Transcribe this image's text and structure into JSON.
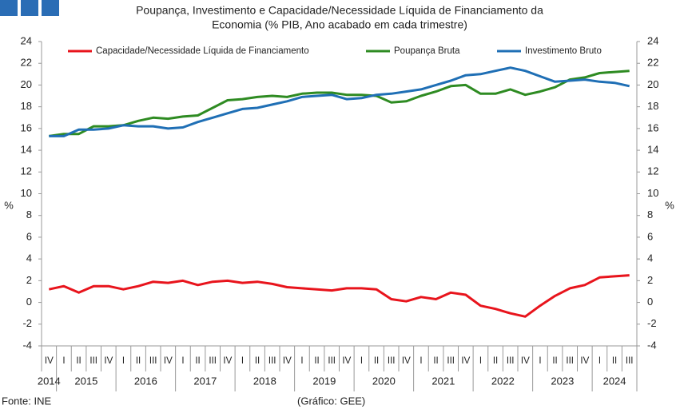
{
  "chart_data": {
    "type": "line",
    "title": [
      "Poupança, Investimento e Capacidade/Necessidade Líquida de Financiamento da",
      "Economia (% PIB, Ano acabado em cada trimestre)"
    ],
    "categories": [
      "IV",
      "I",
      "II",
      "III",
      "IV",
      "I",
      "II",
      "III",
      "IV",
      "I",
      "II",
      "III",
      "IV",
      "I",
      "II",
      "III",
      "IV",
      "I",
      "II",
      "III",
      "IV",
      "I",
      "II",
      "III",
      "IV",
      "I",
      "II",
      "III",
      "IV",
      "I",
      "II",
      "III",
      "IV",
      "I",
      "II",
      "III",
      "IV",
      "I",
      "II",
      "III"
    ],
    "years": [
      "2014",
      "2015",
      "2016",
      "2017",
      "2018",
      "2019",
      "2020",
      "2021",
      "2022",
      "2023",
      "2024"
    ],
    "ylabel": "%",
    "y2label": "%",
    "ylim": [
      -4,
      24
    ],
    "yticks": [
      -4,
      -2,
      0,
      2,
      4,
      6,
      8,
      10,
      12,
      14,
      16,
      18,
      20,
      22,
      24
    ],
    "y2lim": [
      -4,
      24
    ],
    "y2ticks": [
      -4,
      -2,
      0,
      2,
      4,
      6,
      8,
      10,
      12,
      14,
      16,
      18,
      20,
      22,
      24
    ],
    "legend": "top",
    "series": [
      {
        "name": "Capacidade/Necessidade Líquida de Financiamento",
        "color": "#e8141c",
        "values": [
          1.2,
          1.5,
          0.9,
          1.5,
          1.5,
          1.2,
          1.5,
          1.9,
          1.8,
          2.0,
          1.6,
          1.9,
          2.0,
          1.8,
          1.9,
          1.7,
          1.4,
          1.3,
          1.2,
          1.1,
          1.3,
          1.3,
          1.2,
          0.3,
          0.1,
          0.5,
          0.3,
          0.9,
          0.7,
          -0.3,
          -0.6,
          -1.0,
          -1.3,
          -0.3,
          0.6,
          1.3,
          1.6,
          2.3,
          2.4,
          2.5
        ]
      },
      {
        "name": "Poupança Bruta",
        "color": "#2e8b22",
        "values": [
          15.3,
          15.5,
          15.5,
          16.2,
          16.2,
          16.3,
          16.7,
          17.0,
          16.9,
          17.1,
          17.2,
          17.9,
          18.6,
          18.7,
          18.9,
          19.0,
          18.9,
          19.2,
          19.3,
          19.3,
          19.1,
          19.1,
          19.0,
          18.4,
          18.5,
          19.0,
          19.4,
          19.9,
          20.0,
          19.2,
          19.2,
          19.6,
          19.1,
          19.4,
          19.8,
          20.5,
          20.7,
          21.1,
          21.2,
          21.3
        ]
      },
      {
        "name": "Investimento Bruto",
        "color": "#1f6fb5",
        "values": [
          15.3,
          15.3,
          15.9,
          15.9,
          16.0,
          16.3,
          16.2,
          16.2,
          16.0,
          16.1,
          16.6,
          17.0,
          17.4,
          17.8,
          17.9,
          18.2,
          18.5,
          18.9,
          19.0,
          19.1,
          18.7,
          18.8,
          19.1,
          19.2,
          19.4,
          19.6,
          20.0,
          20.4,
          20.9,
          21.0,
          21.3,
          21.6,
          21.3,
          20.8,
          20.3,
          20.4,
          20.5,
          20.3,
          20.2,
          19.9
        ]
      }
    ]
  },
  "footer": {
    "source": "Fonte: INE",
    "credit": "(Gráfico: GEE)"
  }
}
